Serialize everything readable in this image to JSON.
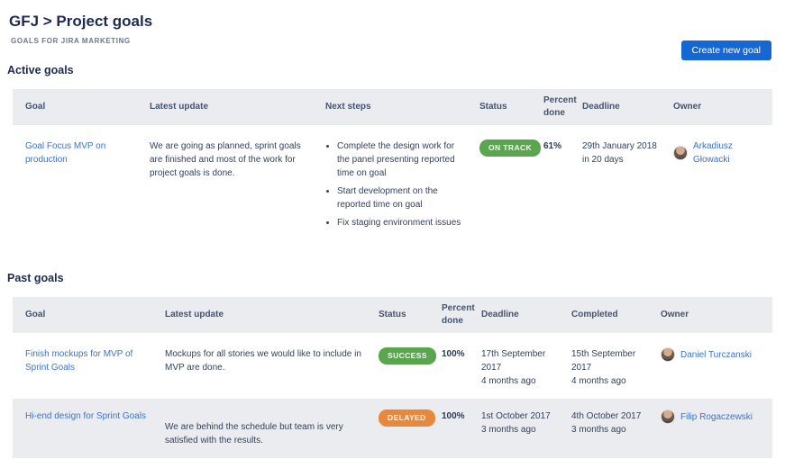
{
  "page": {
    "title": "GFJ > Project goals",
    "subtitle": "GOALS FOR JIRA MARKETING",
    "create_button_label": "Create new goal"
  },
  "colors": {
    "accent_blue": "#1567d3",
    "link_blue": "#3b74c8",
    "success_green": "#5aa64f",
    "delayed_orange": "#e8883d",
    "table_header_bg": "#ebecf0",
    "alt_row_bg": "#ebecf0"
  },
  "active_goals": {
    "heading": "Active goals",
    "columns": [
      "Goal",
      "Latest update",
      "Next steps",
      "Status",
      "Percent done",
      "Deadline",
      "Owner"
    ],
    "rows": [
      {
        "goal": "Goal Focus MVP on production",
        "latest_update": "We are going as planned, sprint goals are finished and most of the work for project goals is done.",
        "next_steps": [
          "Complete the design work for the panel presenting reported time on goal",
          "Start development on the reported time on goal",
          "Fix staging environment issues"
        ],
        "status": "ON TRACK",
        "status_color": "#5aa64f",
        "percent_done": "61%",
        "deadline_date": "29th January 2018",
        "deadline_relative": "in 20 days",
        "owner": "Arkadiusz Głowacki"
      }
    ]
  },
  "past_goals": {
    "heading": "Past goals",
    "columns": [
      "Goal",
      "Latest update",
      "Status",
      "Percent done",
      "Deadline",
      "Completed",
      "Owner"
    ],
    "rows": [
      {
        "goal": "Finish mockups for MVP of Sprint Goals",
        "latest_update": "Mockups for all stories we would like to include in MVP are done.",
        "status": "SUCCESS",
        "status_color": "#5aa64f",
        "percent_done": "100%",
        "deadline_date": "17th September 2017",
        "deadline_relative": "4 months ago",
        "completed_date": "15th September 2017",
        "completed_relative": "4 months ago",
        "owner": "Daniel Turczanski"
      },
      {
        "goal": "Hi-end design for Sprint Goals",
        "latest_update": "We are behind the schedule but team is very satisfied with the results.",
        "status": "DELAYED",
        "status_color": "#e8883d",
        "percent_done": "100%",
        "deadline_date": "1st October 2017",
        "deadline_relative": "3 months ago",
        "completed_date": "4th October 2017",
        "completed_relative": "3 months ago",
        "owner": "Filip Rogaczewski"
      }
    ]
  }
}
